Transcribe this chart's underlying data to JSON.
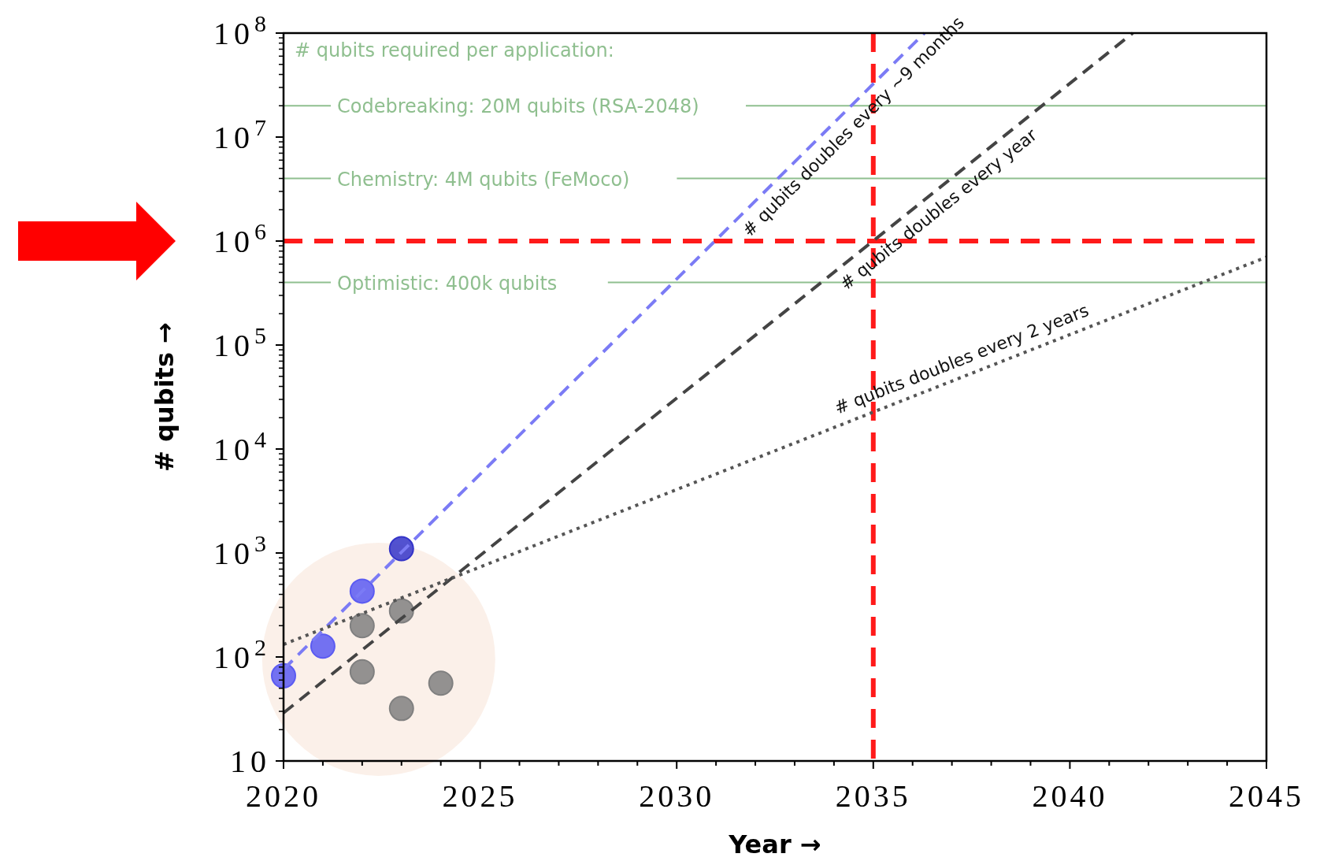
{
  "chart_data": {
    "type": "scatter",
    "xlabel": "Year →",
    "ylabel": "# qubits →",
    "log": "y",
    "grid": false,
    "xlim": [
      2020,
      2045
    ],
    "ylim": [
      10,
      100000000
    ],
    "xticks": [
      2020,
      2025,
      2030,
      2035,
      2040,
      2045,
      {
        "value": 2021,
        "label": null
      },
      {
        "value": 2022,
        "label": null
      },
      {
        "value": 2023,
        "label": null
      },
      {
        "value": 2024,
        "label": null
      },
      {
        "value": 2026,
        "label": null
      },
      {
        "value": 2027,
        "label": null
      },
      {
        "value": 2028,
        "label": null
      },
      {
        "value": 2029,
        "label": null
      },
      {
        "value": 2031,
        "label": null
      },
      {
        "value": 2032,
        "label": null
      },
      {
        "value": 2033,
        "label": null
      },
      {
        "value": 2034,
        "label": null
      },
      {
        "value": 2036,
        "label": null
      },
      {
        "value": 2037,
        "label": null
      },
      {
        "value": 2038,
        "label": null
      },
      {
        "value": 2039,
        "label": null
      },
      {
        "value": 2041,
        "label": null
      },
      {
        "value": 2042,
        "label": null
      },
      {
        "value": 2043,
        "label": null
      },
      {
        "value": 2044,
        "label": null
      }
    ],
    "yticks": [
      {
        "value": 10,
        "label": "10"
      },
      {
        "value": 100,
        "label": "10$^{2}$"
      },
      {
        "value": 1000,
        "label": "10$^{3}$"
      },
      {
        "value": 10000,
        "label": "10$^{4}$"
      },
      {
        "value": 100000,
        "label": "10$^{5}$"
      },
      {
        "value": 1000000,
        "label": "10$^{6}$"
      },
      {
        "value": 10000000,
        "label": "10$^{7}$"
      },
      {
        "value": 100000000,
        "label": "10$^{8}$"
      }
    ],
    "series": [
      {
        "marker": "circle",
        "x": [
          2020,
          2021,
          2022,
          2023
        ],
        "values": [
          66,
          127,
          430,
          1100
        ],
        "colors": [
          "#5b5bf2",
          "#5b5bf2",
          "#5b5bf2",
          "#3434c8"
        ]
      },
      {
        "marker": "circle",
        "x": [
          2022,
          2022,
          2023,
          2023,
          2024
        ],
        "values": [
          200,
          72,
          278,
          32,
          56
        ],
        "color": "#808080"
      },
      {
        "type": "line",
        "line_style": "dashed",
        "x": [
          2020,
          2036.3
        ],
        "values": [
          76,
          100000000
        ],
        "color": "#7b7bf5"
      },
      {
        "type": "line",
        "line_style": "dashed",
        "x": [
          2020,
          2041.6
        ],
        "values": [
          29,
          100000000
        ],
        "color": "#444444"
      },
      {
        "type": "line",
        "line_style": "dotted",
        "x": [
          2020,
          2045
        ],
        "values": [
          132,
          700000
        ],
        "color": "#555555"
      }
    ],
    "ref_lines": [
      {
        "axis": "y",
        "value": 20000000,
        "label": "Codebreaking: 20M qubits (RSA-2048)",
        "color": "#8fbf8f",
        "line_style": "solid"
      },
      {
        "axis": "y",
        "value": 4000000,
        "label": "Chemistry: 4M qubits (FeMoco)",
        "color": "#8fbf8f",
        "line_style": "solid"
      },
      {
        "axis": "y",
        "value": 400000,
        "label": "Optimistic: 400k qubits",
        "color": "#8fbf8f",
        "line_style": "solid"
      },
      {
        "axis": "y",
        "value": 1000000,
        "color": "#ff1a1a",
        "line_style": "dashed"
      },
      {
        "axis": "x",
        "value": 2035,
        "color": "#ff1a1a",
        "line_style": "dashed"
      }
    ],
    "annotations": [
      "# qubits required per application:",
      "# qubits doubles every ~9 months",
      "# qubits doubles every year",
      "# qubits doubles every 2 years"
    ]
  }
}
